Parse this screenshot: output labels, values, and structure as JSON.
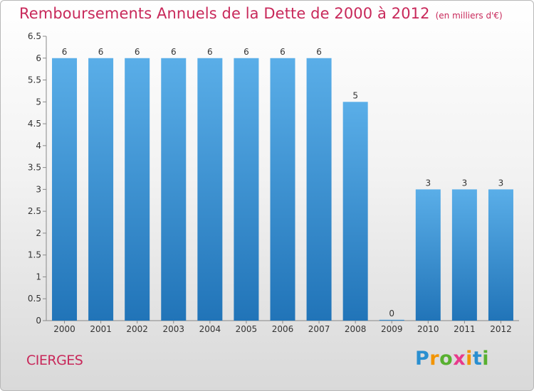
{
  "title": "Remboursements Annuels de la Dette de 2000 à 2012",
  "subtitle": "(en milliers d'€)",
  "commune": "CIERGES",
  "logo": {
    "letters": [
      {
        "ch": "P",
        "color": "#2a8fd0"
      },
      {
        "ch": "r",
        "color": "#f29400"
      },
      {
        "ch": "o",
        "color": "#58b030"
      },
      {
        "ch": "x",
        "color": "#e83a8c"
      },
      {
        "ch": "i",
        "color": "#f29400"
      },
      {
        "ch": "t",
        "color": "#2a8fd0"
      },
      {
        "ch": "i",
        "color": "#58b030"
      }
    ]
  },
  "colors": {
    "bar_top": "#5aaee8",
    "bar_bottom": "#2174b8",
    "text": "#333333",
    "accent": "#c8285a"
  },
  "chart_data": {
    "type": "bar",
    "title": "Remboursements Annuels de la Dette de 2000 à 2012",
    "subtitle": "(en milliers d'€)",
    "categories": [
      "2000",
      "2001",
      "2002",
      "2003",
      "2004",
      "2005",
      "2006",
      "2007",
      "2008",
      "2009",
      "2010",
      "2011",
      "2012"
    ],
    "values": [
      6,
      6,
      6,
      6,
      6,
      6,
      6,
      6,
      5,
      0,
      3,
      3,
      3
    ],
    "value_labels": [
      "6",
      "6",
      "6",
      "6",
      "6",
      "6",
      "6",
      "6",
      "5",
      "0",
      "3",
      "3",
      "3"
    ],
    "yticks": [
      "0",
      "0.5",
      "1",
      "1.5",
      "2",
      "2.5",
      "3",
      "3.5",
      "4",
      "4.5",
      "5",
      "5.5",
      "6",
      "6.5"
    ],
    "ylim": [
      0,
      6.5
    ],
    "grid": false,
    "legend": "none"
  }
}
